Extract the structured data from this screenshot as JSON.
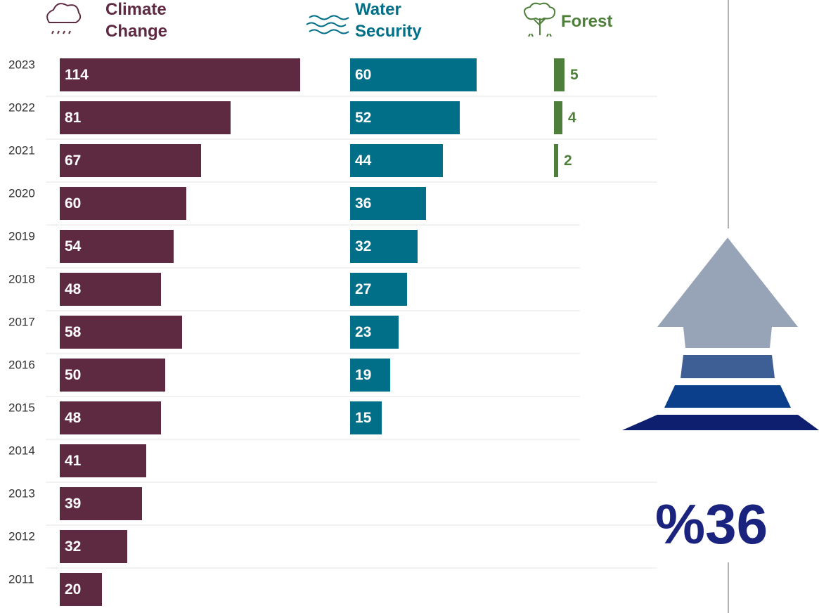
{
  "chart_data": {
    "type": "bar",
    "orientation": "horizontal",
    "categories": [
      "2023",
      "2022",
      "2021",
      "2020",
      "2019",
      "2018",
      "2017",
      "2016",
      "2015",
      "2014",
      "2013",
      "2012",
      "2011"
    ],
    "series": [
      {
        "name": "Climate Change",
        "color": "#5e2a42",
        "values": [
          114,
          81,
          67,
          60,
          54,
          48,
          58,
          50,
          48,
          41,
          39,
          32,
          20
        ]
      },
      {
        "name": "Water Security",
        "color": "#006f87",
        "values": [
          60,
          52,
          44,
          36,
          32,
          27,
          23,
          19,
          15,
          null,
          null,
          null,
          null
        ]
      },
      {
        "name": "Forest",
        "color": "#4e7f3a",
        "values": [
          5,
          4,
          2,
          null,
          null,
          null,
          null,
          null,
          null,
          null,
          null,
          null,
          null
        ]
      }
    ],
    "annotation": "%36"
  }
}
